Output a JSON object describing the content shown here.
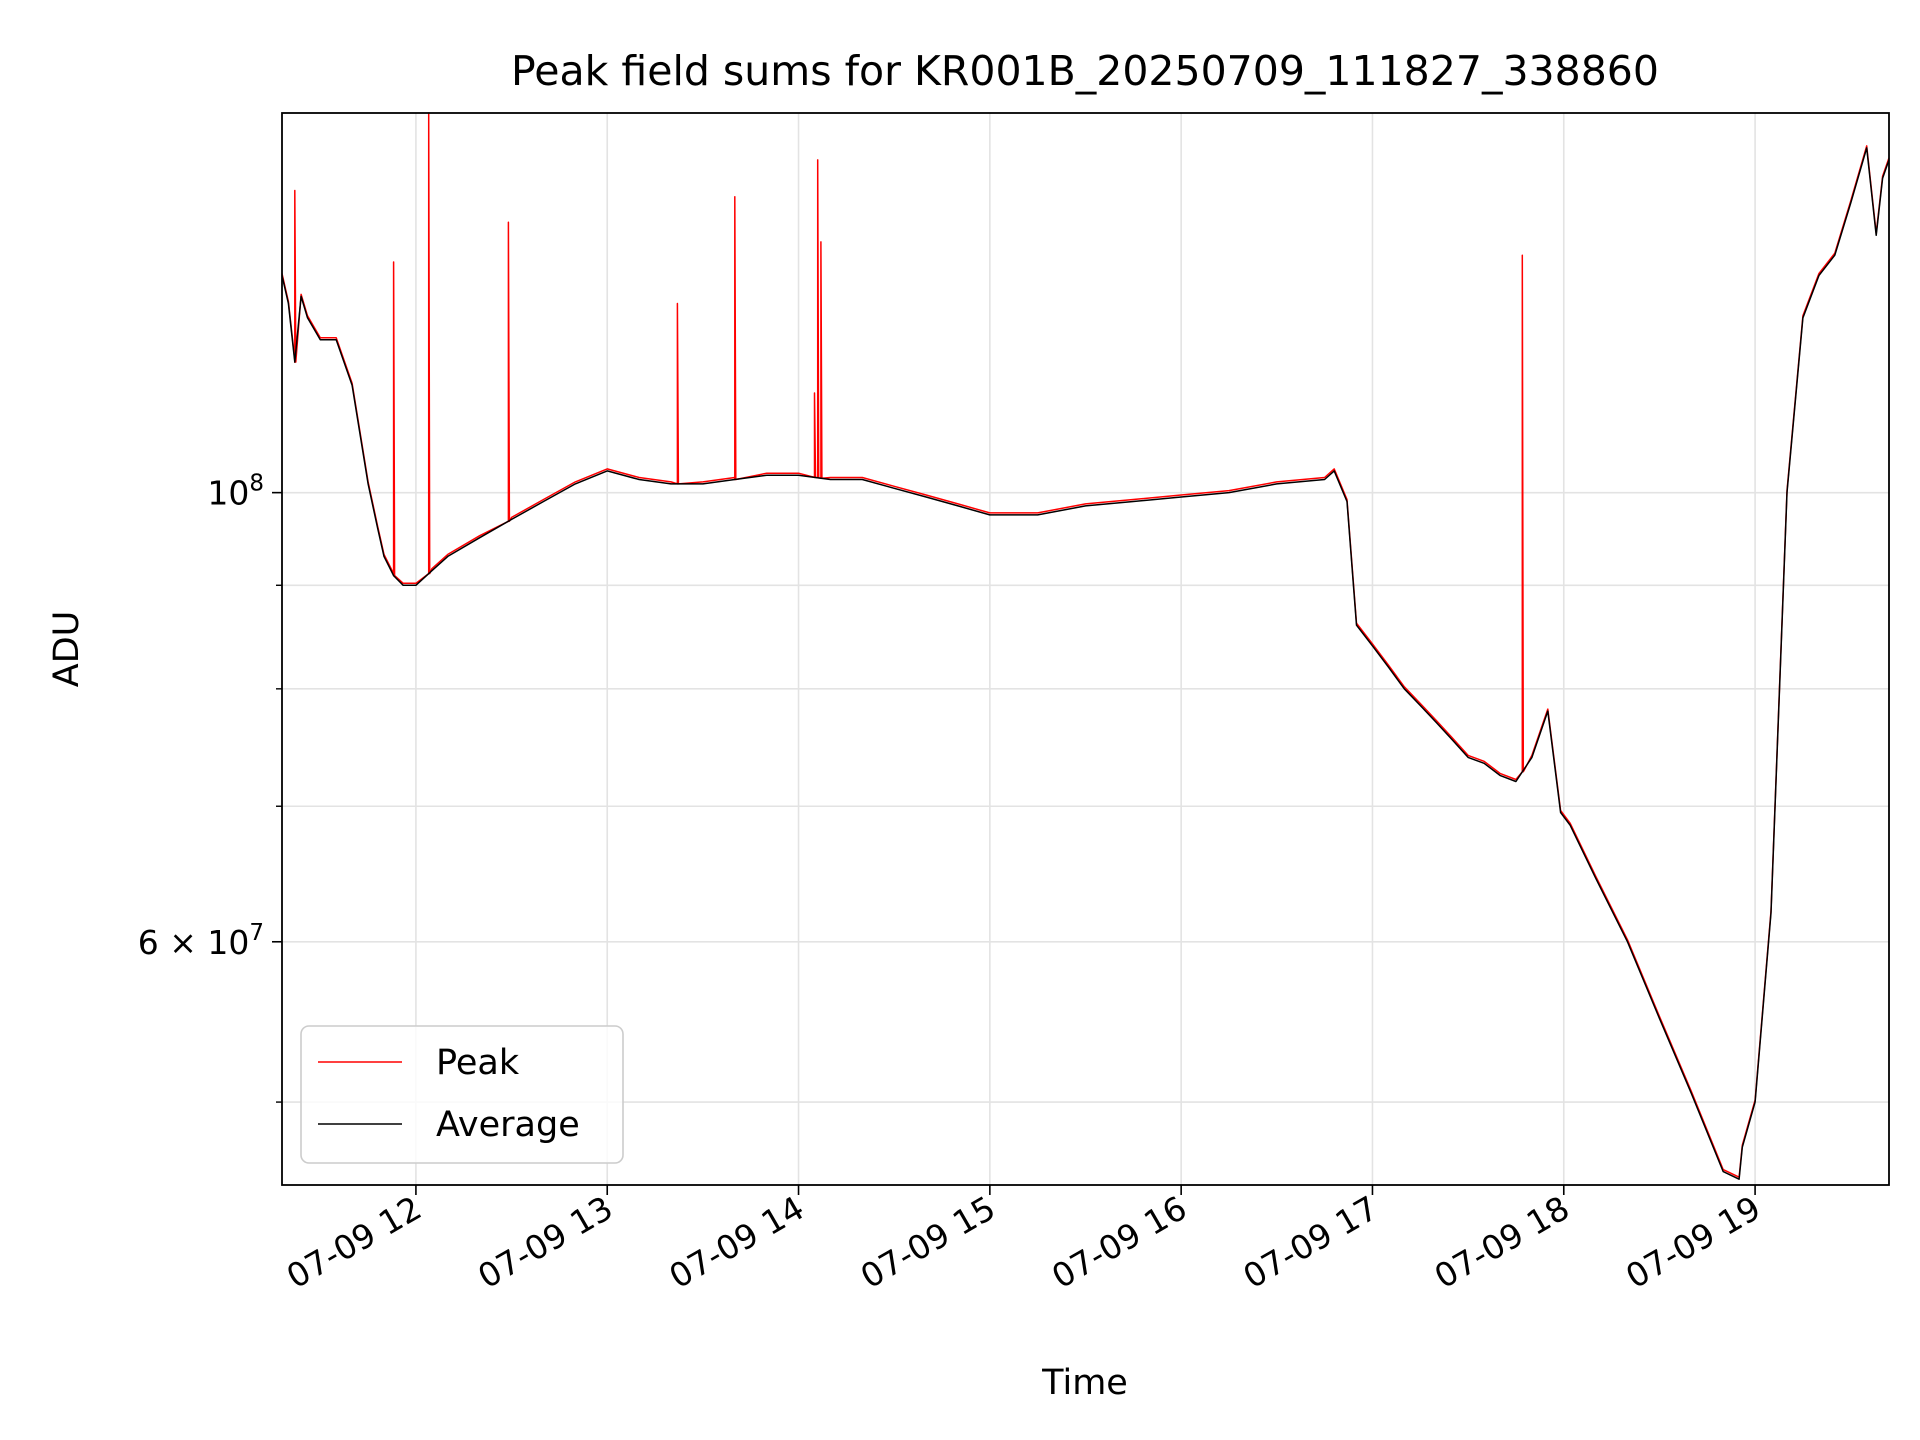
{
  "chart_data": {
    "type": "line",
    "title": "Peak field sums for KR001B_20250709_111827_338860",
    "xlabel": "Time",
    "ylabel": "ADU",
    "xlim": [
      "2025-07-09 11:18",
      "2025-07-09 19:42"
    ],
    "ylim": [
      45500000,
      154000000
    ],
    "yscale": "log",
    "grid": true,
    "legend_position": "lower-left",
    "x_tick_labels": [
      "07-09 12",
      "07-09 13",
      "07-09 14",
      "07-09 15",
      "07-09 16",
      "07-09 17",
      "07-09 18",
      "07-09 19"
    ],
    "x_ticks": [
      "2025-07-09 12:00",
      "2025-07-09 13:00",
      "2025-07-09 14:00",
      "2025-07-09 15:00",
      "2025-07-09 16:00",
      "2025-07-09 17:00",
      "2025-07-09 18:00",
      "2025-07-09 19:00"
    ],
    "y_ticks": [
      {
        "value": 100000000,
        "base": "10",
        "exp": "8",
        "mantissa": ""
      },
      {
        "value": 60000000,
        "base": "10",
        "exp": "7",
        "mantissa": "6 × "
      }
    ],
    "y_minor_ticks": [
      50000000,
      70000000,
      80000000,
      90000000
    ],
    "series": [
      {
        "name": "Average",
        "color": "#000000",
        "x": [
          "2025-07-09 11:18",
          "2025-07-09 11:20",
          "2025-07-09 11:22",
          "2025-07-09 11:24",
          "2025-07-09 11:26",
          "2025-07-09 11:30",
          "2025-07-09 11:35",
          "2025-07-09 11:40",
          "2025-07-09 11:45",
          "2025-07-09 11:48",
          "2025-07-09 11:50",
          "2025-07-09 11:53",
          "2025-07-09 11:56",
          "2025-07-09 12:00",
          "2025-07-09 12:05",
          "2025-07-09 12:10",
          "2025-07-09 12:20",
          "2025-07-09 12:30",
          "2025-07-09 12:40",
          "2025-07-09 12:50",
          "2025-07-09 13:00",
          "2025-07-09 13:10",
          "2025-07-09 13:20",
          "2025-07-09 13:30",
          "2025-07-09 13:40",
          "2025-07-09 13:50",
          "2025-07-09 14:00",
          "2025-07-09 14:10",
          "2025-07-09 14:20",
          "2025-07-09 14:30",
          "2025-07-09 14:40",
          "2025-07-09 14:50",
          "2025-07-09 15:00",
          "2025-07-09 15:15",
          "2025-07-09 15:30",
          "2025-07-09 15:45",
          "2025-07-09 16:00",
          "2025-07-09 16:15",
          "2025-07-09 16:30",
          "2025-07-09 16:45",
          "2025-07-09 16:48",
          "2025-07-09 16:52",
          "2025-07-09 16:55",
          "2025-07-09 17:00",
          "2025-07-09 17:05",
          "2025-07-09 17:10",
          "2025-07-09 17:15",
          "2025-07-09 17:20",
          "2025-07-09 17:25",
          "2025-07-09 17:30",
          "2025-07-09 17:35",
          "2025-07-09 17:40",
          "2025-07-09 17:45",
          "2025-07-09 17:50",
          "2025-07-09 17:55",
          "2025-07-09 17:59",
          "2025-07-09 18:02",
          "2025-07-09 18:10",
          "2025-07-09 18:20",
          "2025-07-09 18:30",
          "2025-07-09 18:40",
          "2025-07-09 18:50",
          "2025-07-09 18:55",
          "2025-07-09 18:56",
          "2025-07-09 19:00",
          "2025-07-09 19:05",
          "2025-07-09 19:10",
          "2025-07-09 19:15",
          "2025-07-09 19:20",
          "2025-07-09 19:25",
          "2025-07-09 19:30",
          "2025-07-09 19:35",
          "2025-07-09 19:38",
          "2025-07-09 19:40",
          "2025-07-09 19:42"
        ],
        "y": [
          128000000,
          124000000,
          116000000,
          125000000,
          122000000,
          119000000,
          119000000,
          113000000,
          101000000,
          96000000,
          93000000,
          91000000,
          90000000,
          90000000,
          91500000,
          93000000,
          95000000,
          97000000,
          99000000,
          101000000,
          102500000,
          101500000,
          101000000,
          101000000,
          101500000,
          102000000,
          102000000,
          101500000,
          101500000,
          100500000,
          99500000,
          98500000,
          97500000,
          97500000,
          98500000,
          99000000,
          99500000,
          100000000,
          101000000,
          101500000,
          102500000,
          99000000,
          86000000,
          84000000,
          82000000,
          80000000,
          78500000,
          77000000,
          75500000,
          74000000,
          73500000,
          72500000,
          72000000,
          74000000,
          78000000,
          69500000,
          68500000,
          64500000,
          60000000,
          55000000,
          50500000,
          46200000,
          45800000,
          47500000,
          50000000,
          62000000,
          100000000,
          122000000,
          128000000,
          131000000,
          139000000,
          148000000,
          134000000,
          143000000,
          146000000
        ]
      },
      {
        "name": "Peak",
        "color": "#ff0000",
        "spikes": [
          {
            "x": "2025-07-09 11:22",
            "y": 141000000
          },
          {
            "x": "2025-07-09 11:53",
            "y": 130000000
          },
          {
            "x": "2025-07-09 12:04",
            "y": 154000000
          },
          {
            "x": "2025-07-09 12:29",
            "y": 136000000
          },
          {
            "x": "2025-07-09 13:22",
            "y": 124000000
          },
          {
            "x": "2025-07-09 13:40",
            "y": 140000000
          },
          {
            "x": "2025-07-09 14:05",
            "y": 112000000
          },
          {
            "x": "2025-07-09 14:06",
            "y": 146000000
          },
          {
            "x": "2025-07-09 14:07",
            "y": 133000000
          },
          {
            "x": "2025-07-09 17:47",
            "y": 131000000
          }
        ]
      }
    ],
    "legend": [
      {
        "label": "Peak",
        "color": "#ff0000"
      },
      {
        "label": "Average",
        "color": "#000000"
      }
    ]
  }
}
